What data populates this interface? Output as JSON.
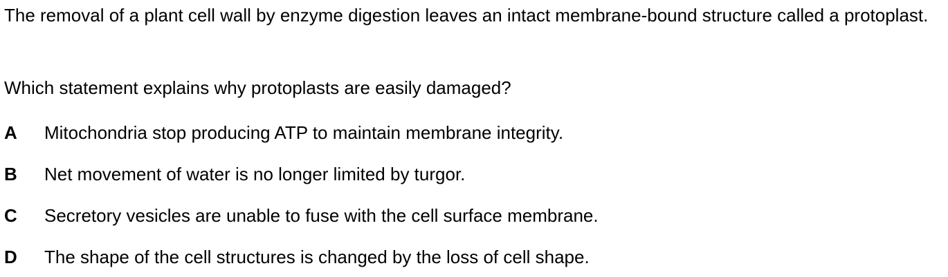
{
  "stem": "The removal of a plant cell wall by enzyme digestion leaves an intact membrane-bound structure called a protoplast.",
  "question": "Which statement explains why protoplasts are easily damaged?",
  "options": [
    {
      "letter": "A",
      "text": "Mitochondria stop producing ATP to maintain membrane integrity."
    },
    {
      "letter": "B",
      "text": "Net movement of water is no longer limited by turgor."
    },
    {
      "letter": "C",
      "text": "Secretory vesicles are unable to fuse with the cell surface membrane."
    },
    {
      "letter": "D",
      "text": "The shape of the cell structures is changed by the loss of cell shape."
    }
  ]
}
